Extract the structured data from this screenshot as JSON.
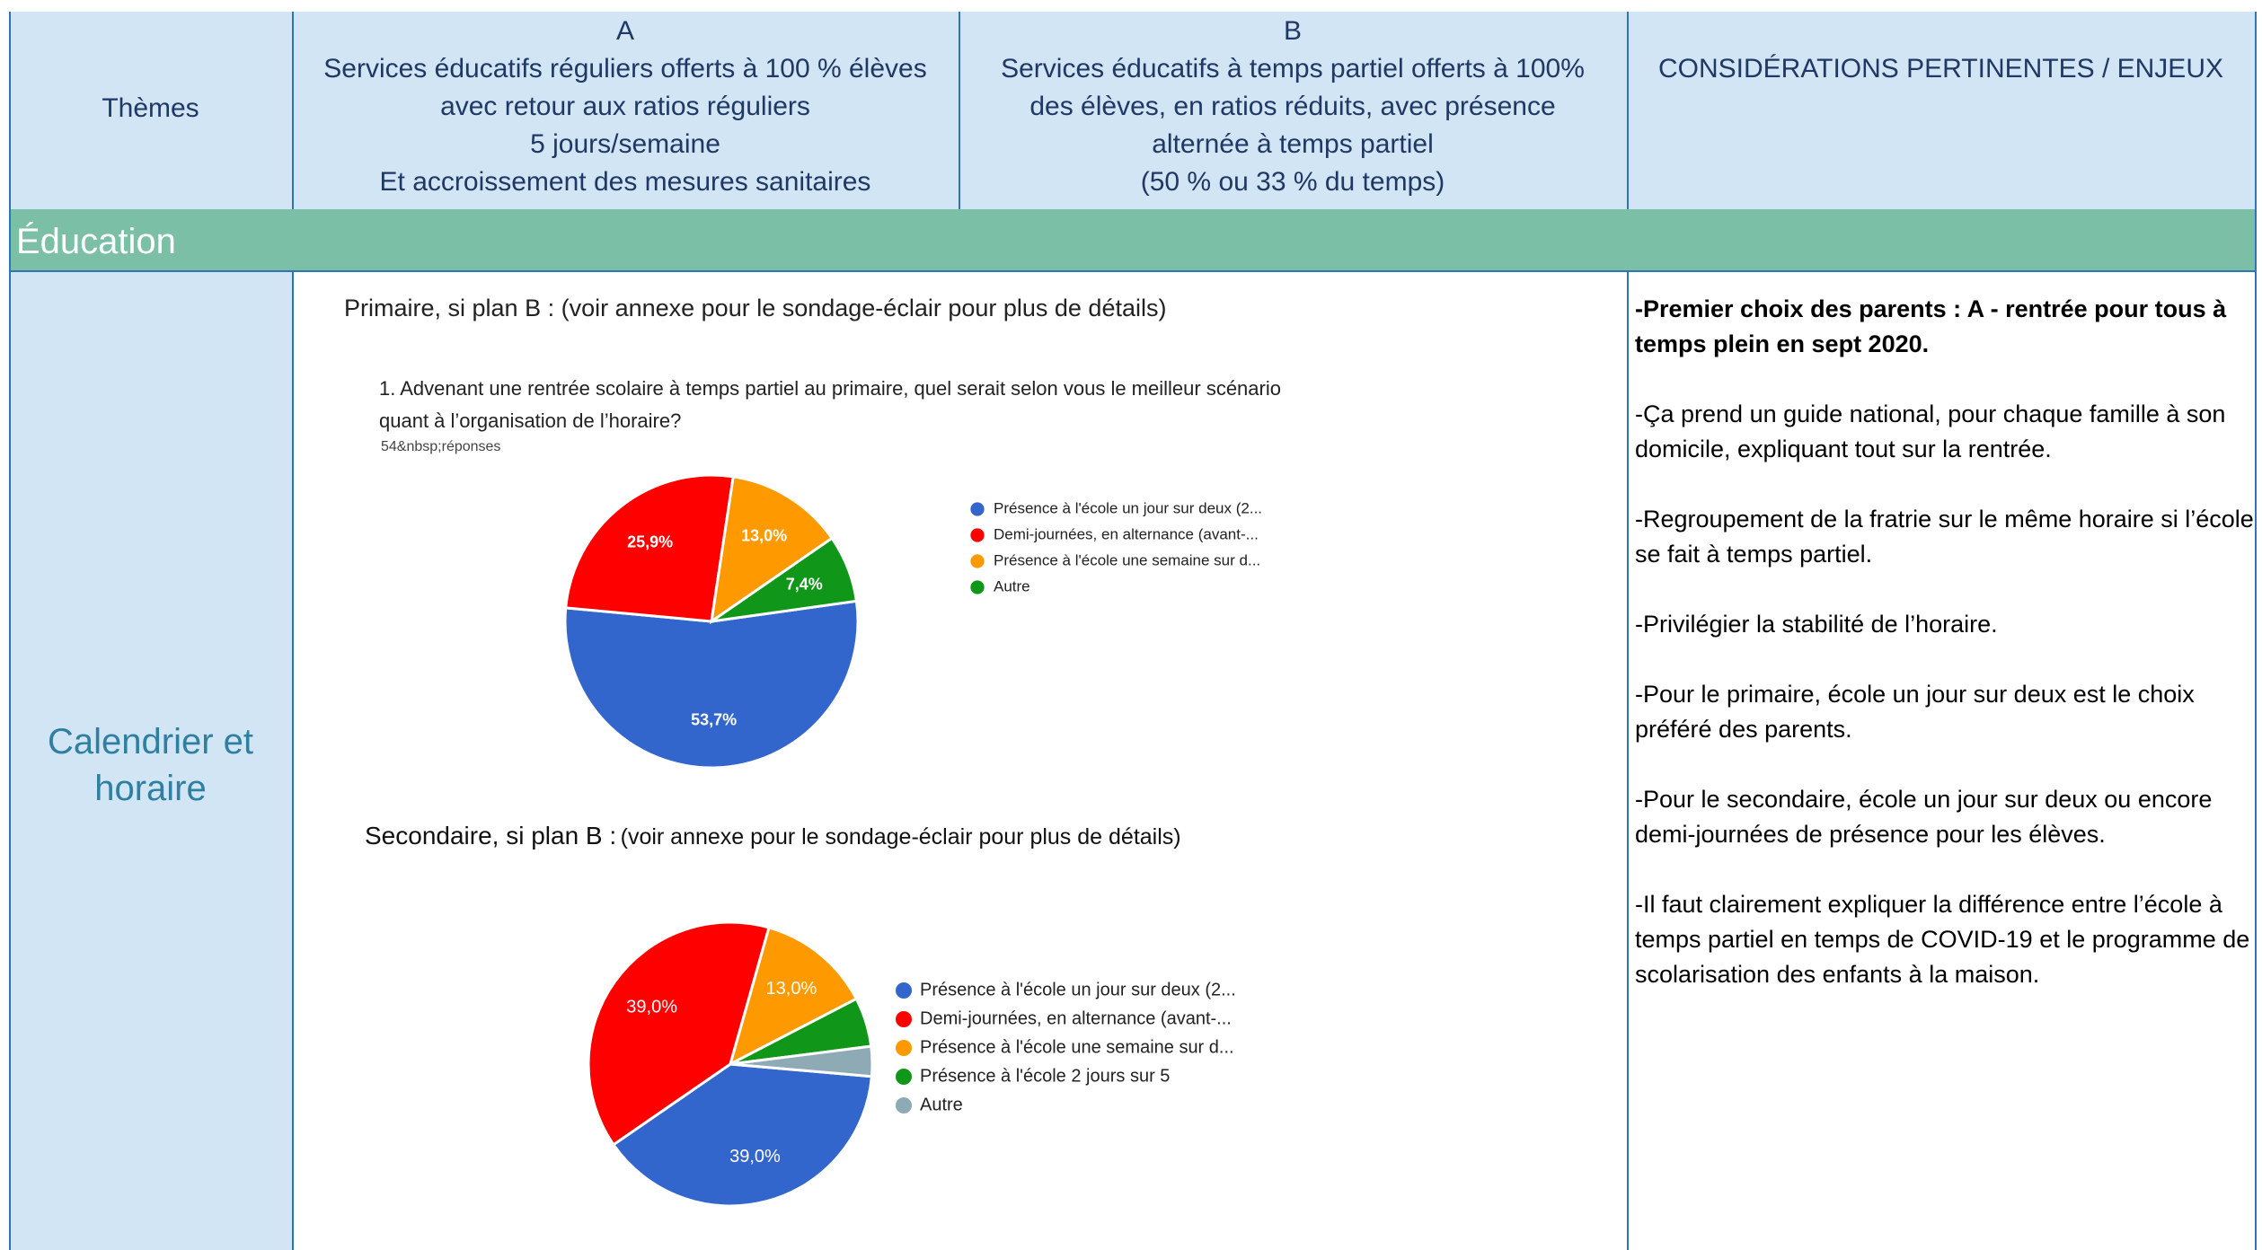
{
  "header": {
    "themes": "Thèmes",
    "col_a": {
      "letter": "A",
      "lines": [
        "Services éducatifs réguliers offerts à 100 % élèves",
        "avec retour aux ratios réguliers",
        "5 jours/semaine",
        "Et accroissement des mesures sanitaires"
      ]
    },
    "col_b": {
      "letter": "B",
      "lines": [
        "Services éducatifs à temps partiel offerts à 100%",
        "des élèves, en ratios réduits, avec présence",
        "alternée à temps partiel",
        "(50 % ou 33 % du temps)"
      ]
    },
    "col_c": "CONSIDÉRATIONS PERTINENTES / ENJEUX"
  },
  "section": "Éducation",
  "row": {
    "theme": "Calendrier et horaire",
    "primary_heading": "Primaire, si plan B : (voir annexe pour le sondage-éclair pour plus de détails)",
    "secondary_heading": "Secondaire, si plan B :",
    "secondary_note": "(voir annexe pour le sondage-éclair pour plus de détails)",
    "key_point": "-Premier choix des parents : A - rentrée pour tous à temps plein en sept 2020.",
    "points": [
      "-Ça prend un guide national, pour chaque famille à son domicile, expliquant tout sur la rentrée.",
      "-Regroupement de la fratrie sur le même horaire si l’école se fait à temps partiel.",
      "-Privilégier la stabilité de l’horaire.",
      "-Pour le primaire, école un jour sur deux est le choix préféré des parents.",
      "-Pour le secondaire, école un jour sur deux ou encore demi-journées de présence pour les élèves.",
      "-Il faut clairement expliquer la différence entre l’école à temps partiel en temps de COVID-19 et le programme de scolarisation des enfants à la maison."
    ]
  },
  "chart_data": [
    {
      "type": "pie",
      "title": "1. Advenant une rentrée scolaire à temps partiel au primaire, quel serait selon vous le meilleur scénario quant à l’organisation de l’horaire?",
      "subtitle": "54&nbsp;réponses",
      "categories": [
        "Présence à l'école un jour sur deux (2...",
        "Demi-journées, en alternance (avant-...",
        "Présence à l'école une semaine sur d...",
        "Autre"
      ],
      "values": [
        53.7,
        25.9,
        13.0,
        7.4
      ],
      "value_labels": [
        "53,7%",
        "25,9%",
        "13,0%",
        "7,4%"
      ],
      "colors": [
        "#3366cc",
        "#ff0000",
        "#ff9900",
        "#109618"
      ]
    },
    {
      "type": "pie",
      "categories": [
        "Présence à l'école un jour sur deux (2...",
        "Demi-journées, en alternance (avant-...",
        "Présence à l'école une semaine sur d...",
        "Présence à l'école 2 jours sur 5",
        "Autre"
      ],
      "values": [
        39.0,
        39.0,
        13.0,
        5.6,
        3.4
      ],
      "value_labels": [
        "39,0%",
        "39,0%",
        "13,0%",
        null,
        null
      ],
      "colors": [
        "#3366cc",
        "#ff0000",
        "#ff9900",
        "#109618",
        "#8eaab5"
      ]
    }
  ]
}
